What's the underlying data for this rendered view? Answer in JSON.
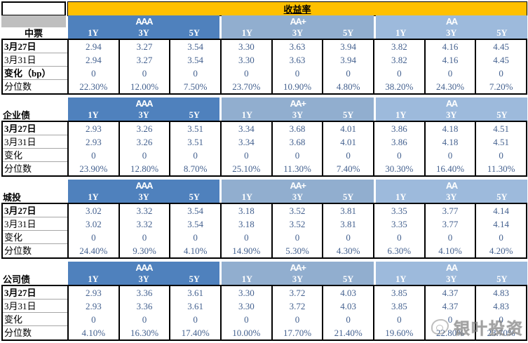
{
  "page": {
    "title_row": {
      "corner": "",
      "title": "收益率"
    }
  },
  "watermark": {
    "text": "银叶投资",
    "logo": "scribble-circle-icon"
  },
  "colors": {
    "header_bg": "#FFC000",
    "group_colors": [
      "#4F81BD",
      "#91AECF",
      "#9DBADC"
    ],
    "corner_gray": "#BFBFBF",
    "value_text": "#44618F",
    "border": "#000000"
  },
  "chart_data": {
    "type": "table",
    "title": "收益率",
    "ratings": [
      "AAA",
      "AA+",
      "AA"
    ],
    "maturities": [
      "1Y",
      "3Y",
      "5Y"
    ],
    "sections": [
      {
        "name": "中票",
        "corner_gray": true,
        "label_centered": true,
        "row_labels": [
          "3月27日",
          "3月31日",
          "变化（bp）",
          "分位数"
        ],
        "groups": [
          {
            "rating": "AAA",
            "columns": [
              [
                "2.94",
                "2.94",
                "0",
                "22.30%"
              ],
              [
                "3.27",
                "3.27",
                "0",
                "12.00%"
              ],
              [
                "3.54",
                "3.54",
                "0",
                "7.50%"
              ]
            ]
          },
          {
            "rating": "AA+",
            "columns": [
              [
                "3.30",
                "3.30",
                "0",
                "23.70%"
              ],
              [
                "3.63",
                "3.63",
                "0",
                "10.90%"
              ],
              [
                "3.94",
                "3.94",
                "0",
                "4.80%"
              ]
            ]
          },
          {
            "rating": "AA",
            "columns": [
              [
                "3.82",
                "3.82",
                "0",
                "38.20%"
              ],
              [
                "4.16",
                "4.16",
                "0",
                "24.30%"
              ],
              [
                "4.45",
                "4.45",
                "0",
                "7.20%"
              ]
            ]
          }
        ]
      },
      {
        "name": "企业债",
        "corner_gray": false,
        "label_centered": false,
        "row_labels": [
          "3月27日",
          "3月31日",
          "变化",
          "分位数"
        ],
        "groups": [
          {
            "rating": "AAA",
            "columns": [
              [
                "2.93",
                "2.93",
                "0",
                "23.90%"
              ],
              [
                "3.26",
                "3.26",
                "0",
                "12.80%"
              ],
              [
                "3.51",
                "3.51",
                "0",
                "8.70%"
              ]
            ]
          },
          {
            "rating": "AA+",
            "columns": [
              [
                "3.34",
                "3.34",
                "0",
                "25.10%"
              ],
              [
                "3.68",
                "3.68",
                "0",
                "11.30%"
              ],
              [
                "4.01",
                "4.01",
                "0",
                "7.40%"
              ]
            ]
          },
          {
            "rating": "AA",
            "columns": [
              [
                "3.86",
                "3.86",
                "0",
                "30.30%"
              ],
              [
                "4.18",
                "4.18",
                "0",
                "16.40%"
              ],
              [
                "4.51",
                "4.51",
                "0",
                "11.30%"
              ]
            ]
          }
        ]
      },
      {
        "name": "城投",
        "corner_gray": false,
        "label_centered": false,
        "row_labels": [
          "3月27日",
          "3月31日",
          "变化",
          "分位数"
        ],
        "groups": [
          {
            "rating": "AAA",
            "columns": [
              [
                "3.02",
                "3.02",
                "0",
                "24.40%"
              ],
              [
                "3.32",
                "3.32",
                "0",
                "9.30%"
              ],
              [
                "3.54",
                "3.54",
                "0",
                "4.10%"
              ]
            ]
          },
          {
            "rating": "AA+",
            "columns": [
              [
                "3.18",
                "3.18",
                "0",
                "14.90%"
              ],
              [
                "3.52",
                "3.52",
                "0",
                "5.30%"
              ],
              [
                "3.81",
                "3.81",
                "0",
                "4.30%"
              ]
            ]
          },
          {
            "rating": "AA",
            "columns": [
              [
                "3.35",
                "3.35",
                "0",
                "6.30%"
              ],
              [
                "3.77",
                "3.77",
                "0",
                "4.10%"
              ],
              [
                "4.14",
                "4.14",
                "0",
                "4.20%"
              ]
            ]
          }
        ]
      },
      {
        "name": "公司债",
        "corner_gray": false,
        "label_centered": false,
        "row_labels": [
          "3月27日",
          "3月31日",
          "变化",
          "分位数"
        ],
        "groups": [
          {
            "rating": "AAA",
            "columns": [
              [
                "2.93",
                "2.93",
                "0",
                "4.10%"
              ],
              [
                "3.36",
                "3.36",
                "0",
                "16.30%"
              ],
              [
                "3.61",
                "3.61",
                "0",
                "17.40%"
              ]
            ]
          },
          {
            "rating": "AA+",
            "columns": [
              [
                "3.30",
                "3.30",
                "0",
                "10.00%"
              ],
              [
                "3.72",
                "3.72",
                "0",
                "17.70%"
              ],
              [
                "4.03",
                "4.03",
                "0",
                "21.40%"
              ]
            ]
          },
          {
            "rating": "AA",
            "columns": [
              [
                "3.85",
                "3.85",
                "0",
                "19.60%"
              ],
              [
                "4.37",
                "4.37",
                "0",
                "22.80%"
              ],
              [
                "4.83",
                "4.83",
                "0",
                "23.70%"
              ]
            ]
          }
        ]
      }
    ]
  }
}
